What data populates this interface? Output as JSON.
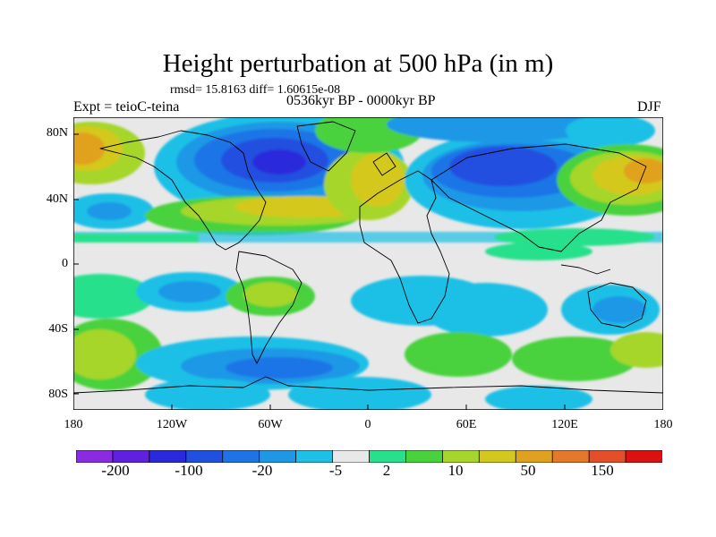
{
  "title": "Height perturbation at 500 hPa (in m)",
  "stats": "rmsd= 15.8163 diff= 1.60615e-08",
  "left_label": "Expt = teioC-teina",
  "center_label": "0536kyr BP - 0000kyr BP",
  "right_label": "DJF",
  "lat_ticks": [
    "80N",
    "40N",
    "0",
    "40S",
    "80S"
  ],
  "lon_ticks": [
    "180",
    "120W",
    "60W",
    "0",
    "60E",
    "120E",
    "180"
  ],
  "colorbar": {
    "colors": [
      "#8a2be2",
      "#6020e0",
      "#2a2adc",
      "#2050e0",
      "#1e74e6",
      "#1e98e6",
      "#1ec0e6",
      "#e8e8e8",
      "#28e08c",
      "#48d23c",
      "#a6d62a",
      "#d4c81e",
      "#e0a21e",
      "#e6782a",
      "#e64e2a",
      "#dd1010"
    ],
    "labels": [
      "-200",
      "-100",
      "-20",
      "-5",
      "2",
      "10",
      "50",
      "150"
    ]
  }
}
